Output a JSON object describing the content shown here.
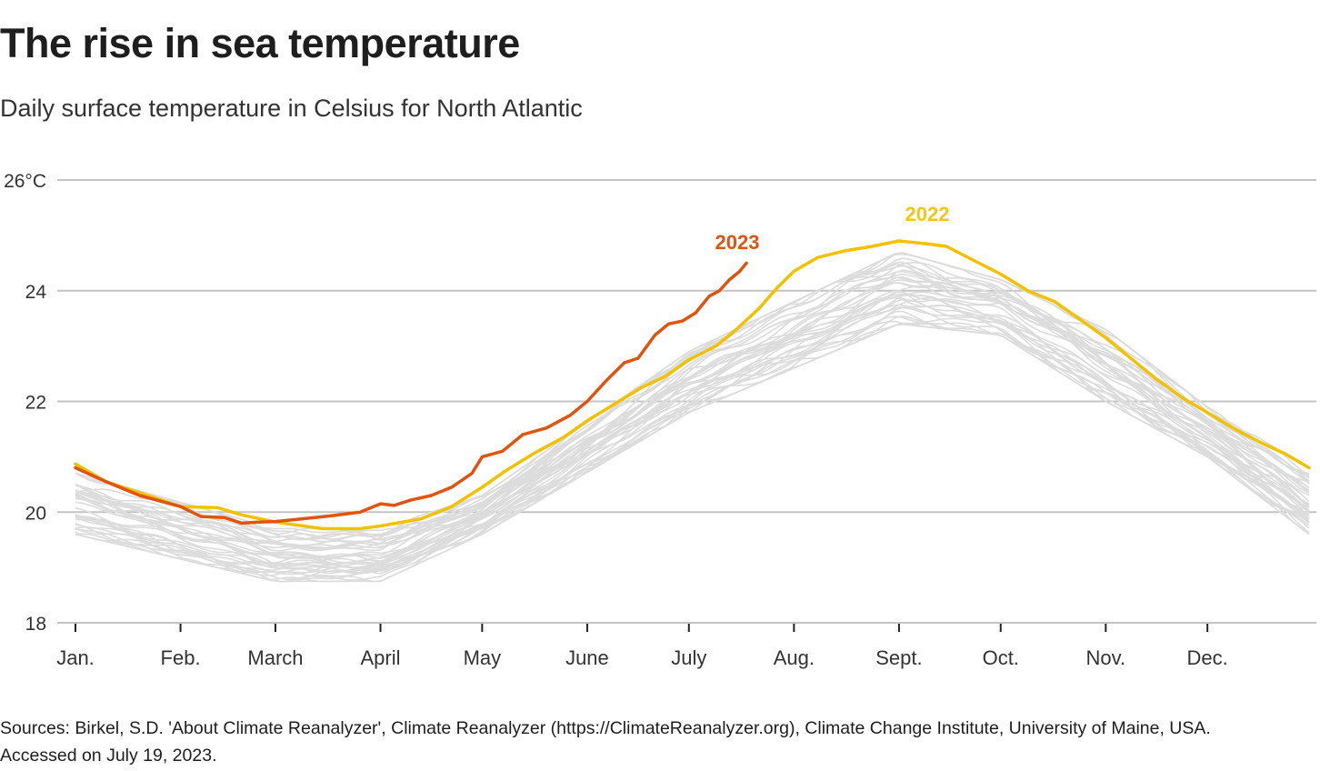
{
  "title": "The rise in sea temperature",
  "subtitle": "Daily surface temperature in Celsius for North Atlantic",
  "source": "Sources: Birkel, S.D. 'About Climate Reanalyzer', Climate Reanalyzer (https://ClimateReanalyzer.org), Climate Change Institute, University of Maine, USA. Accessed on July 19, 2023.",
  "chart_data": {
    "type": "line",
    "title": "The rise in sea temperature",
    "subtitle": "Daily surface temperature in Celsius for North Atlantic",
    "xlabel": "",
    "ylabel": "",
    "x_unit": "day of year",
    "xlim": [
      1,
      365
    ],
    "ylim": [
      18,
      26
    ],
    "grid": true,
    "y_ticks": [
      {
        "value": 26,
        "label": "26°C"
      },
      {
        "value": 24,
        "label": "24"
      },
      {
        "value": 22,
        "label": "22"
      },
      {
        "value": 20,
        "label": "20"
      },
      {
        "value": 18,
        "label": "18"
      }
    ],
    "x_ticks": [
      {
        "day": 1,
        "label": "Jan."
      },
      {
        "day": 32,
        "label": "Feb."
      },
      {
        "day": 60,
        "label": "March"
      },
      {
        "day": 91,
        "label": "April"
      },
      {
        "day": 121,
        "label": "May"
      },
      {
        "day": 152,
        "label": "June"
      },
      {
        "day": 182,
        "label": "July"
      },
      {
        "day": 213,
        "label": "Aug."
      },
      {
        "day": 244,
        "label": "Sept."
      },
      {
        "day": 274,
        "label": "Oct."
      },
      {
        "day": 305,
        "label": "Nov."
      },
      {
        "day": 335,
        "label": "Dec."
      }
    ],
    "series": [
      {
        "name": "2022",
        "label": "2022",
        "color": "#f2c200",
        "label_color": "#f5c518",
        "points": [
          [
            1,
            20.87
          ],
          [
            10,
            20.55
          ],
          [
            20,
            20.35
          ],
          [
            32,
            20.1
          ],
          [
            43,
            20.08
          ],
          [
            50,
            19.95
          ],
          [
            60,
            19.82
          ],
          [
            74,
            19.7
          ],
          [
            85,
            19.7
          ],
          [
            91,
            19.75
          ],
          [
            103,
            19.88
          ],
          [
            112,
            20.1
          ],
          [
            121,
            20.45
          ],
          [
            128,
            20.75
          ],
          [
            136,
            21.05
          ],
          [
            145,
            21.35
          ],
          [
            152,
            21.65
          ],
          [
            160,
            21.95
          ],
          [
            168,
            22.25
          ],
          [
            175,
            22.45
          ],
          [
            182,
            22.75
          ],
          [
            190,
            23.0
          ],
          [
            196,
            23.3
          ],
          [
            203,
            23.7
          ],
          [
            208,
            24.05
          ],
          [
            213,
            24.35
          ],
          [
            220,
            24.6
          ],
          [
            228,
            24.72
          ],
          [
            236,
            24.8
          ],
          [
            244,
            24.9
          ],
          [
            252,
            24.85
          ],
          [
            258,
            24.8
          ],
          [
            266,
            24.55
          ],
          [
            274,
            24.3
          ],
          [
            282,
            24.0
          ],
          [
            290,
            23.8
          ],
          [
            297,
            23.5
          ],
          [
            305,
            23.15
          ],
          [
            312,
            22.8
          ],
          [
            320,
            22.4
          ],
          [
            328,
            22.05
          ],
          [
            335,
            21.8
          ],
          [
            343,
            21.5
          ],
          [
            351,
            21.25
          ],
          [
            358,
            21.05
          ],
          [
            365,
            20.8
          ]
        ]
      },
      {
        "name": "2023",
        "label": "2023",
        "color": "#e0540f",
        "label_color": "#e0540f",
        "points": [
          [
            1,
            20.8
          ],
          [
            10,
            20.55
          ],
          [
            20,
            20.3
          ],
          [
            32,
            20.1
          ],
          [
            38,
            19.92
          ],
          [
            45,
            19.9
          ],
          [
            50,
            19.8
          ],
          [
            55,
            19.82
          ],
          [
            60,
            19.83
          ],
          [
            68,
            19.88
          ],
          [
            76,
            19.93
          ],
          [
            85,
            20.0
          ],
          [
            91,
            20.15
          ],
          [
            95,
            20.12
          ],
          [
            100,
            20.22
          ],
          [
            106,
            20.3
          ],
          [
            112,
            20.45
          ],
          [
            118,
            20.7
          ],
          [
            121,
            21.0
          ],
          [
            127,
            21.1
          ],
          [
            133,
            21.4
          ],
          [
            140,
            21.52
          ],
          [
            147,
            21.75
          ],
          [
            152,
            22.0
          ],
          [
            158,
            22.4
          ],
          [
            163,
            22.7
          ],
          [
            167,
            22.78
          ],
          [
            172,
            23.2
          ],
          [
            176,
            23.4
          ],
          [
            180,
            23.45
          ],
          [
            184,
            23.6
          ],
          [
            188,
            23.9
          ],
          [
            191,
            24.0
          ],
          [
            194,
            24.2
          ],
          [
            197,
            24.35
          ],
          [
            199,
            24.5
          ]
        ]
      }
    ],
    "background_series": {
      "description": "Previous years (grey)",
      "color": "#dcdcdc",
      "count": 40,
      "envelope_min": [
        [
          1,
          19.6
        ],
        [
          60,
          18.75
        ],
        [
          91,
          18.75
        ],
        [
          121,
          19.6
        ],
        [
          182,
          21.8
        ],
        [
          244,
          23.4
        ],
        [
          274,
          23.2
        ],
        [
          305,
          22.0
        ],
        [
          335,
          21.0
        ],
        [
          365,
          19.6
        ]
      ],
      "envelope_max": [
        [
          1,
          20.7
        ],
        [
          60,
          19.7
        ],
        [
          91,
          19.7
        ],
        [
          121,
          20.3
        ],
        [
          182,
          22.9
        ],
        [
          244,
          24.7
        ],
        [
          274,
          24.2
        ],
        [
          305,
          23.3
        ],
        [
          335,
          21.9
        ],
        [
          365,
          20.8
        ]
      ]
    }
  }
}
